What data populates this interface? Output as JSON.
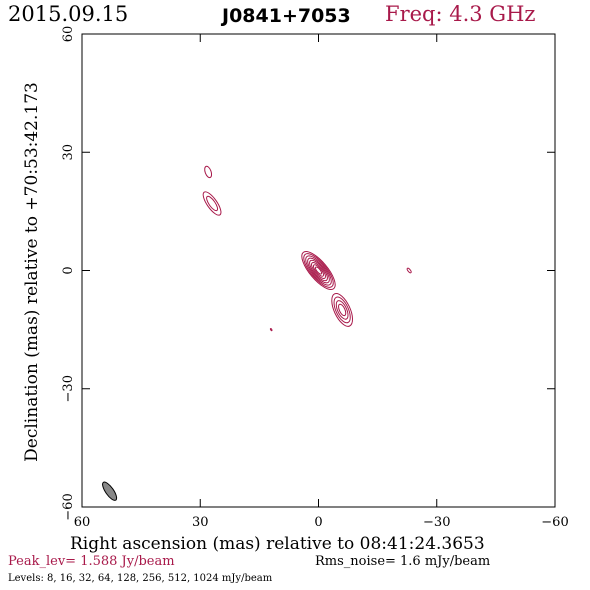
{
  "header": {
    "date": "2015.09.15",
    "source": "J0841+7053",
    "freq": "Freq: 4.3 GHz"
  },
  "footer": {
    "peak": "Peak_lev=  1.588 Jy/beam",
    "rms": "Rms_noise=  1.6 mJy/beam",
    "levels": "Levels:   8,  16,  32,  64, 128, 256, 512, 1024 mJy/beam"
  },
  "colors": {
    "contour": "#a8194a",
    "beam": "#888888",
    "axis": "#000000"
  },
  "chart_data": {
    "type": "contour",
    "xlabel": "Right ascension (mas) relative to 08:41:24.3653",
    "ylabel": "Declination (mas) relative to +70:53:42.173",
    "xlim": [
      60,
      -60
    ],
    "ylim": [
      -60,
      60
    ],
    "x_ticks": [
      60,
      30,
      0,
      -30,
      -60
    ],
    "y_ticks": [
      60,
      30,
      0,
      -30,
      -60
    ],
    "x_tick_labels": [
      "60",
      "30",
      "0",
      "−30",
      "−60"
    ],
    "y_tick_labels": [
      "60",
      "30",
      "0",
      "−30",
      "−60"
    ],
    "contour_levels_mJy": [
      8,
      16,
      32,
      64,
      128,
      256,
      512,
      1024
    ],
    "beam": {
      "x": 53,
      "y": -56,
      "major": 5.5,
      "minor": 2.0,
      "pa_deg": 35
    },
    "components": [
      {
        "name": "core",
        "x": 0,
        "y": 0,
        "major": 12,
        "minor": 4.5,
        "pa_deg": 40,
        "levels": 8
      },
      {
        "name": "jet-knot-1",
        "x": -6,
        "y": -10,
        "major": 9,
        "minor": 4,
        "pa_deg": 25,
        "levels": 4
      },
      {
        "name": "knot-nw-1",
        "x": 27,
        "y": 17,
        "major": 7,
        "minor": 2.5,
        "pa_deg": 35,
        "levels": 2
      },
      {
        "name": "knot-nw-2",
        "x": 28,
        "y": 25,
        "major": 3,
        "minor": 1.5,
        "pa_deg": 20,
        "levels": 1
      },
      {
        "name": "spot-e",
        "x": -23,
        "y": 0,
        "major": 1.4,
        "minor": 0.6,
        "pa_deg": 40,
        "levels": 1
      },
      {
        "name": "spot-s",
        "x": 12,
        "y": -15,
        "major": 0.6,
        "minor": 0.3,
        "pa_deg": 30,
        "levels": 1
      }
    ]
  }
}
